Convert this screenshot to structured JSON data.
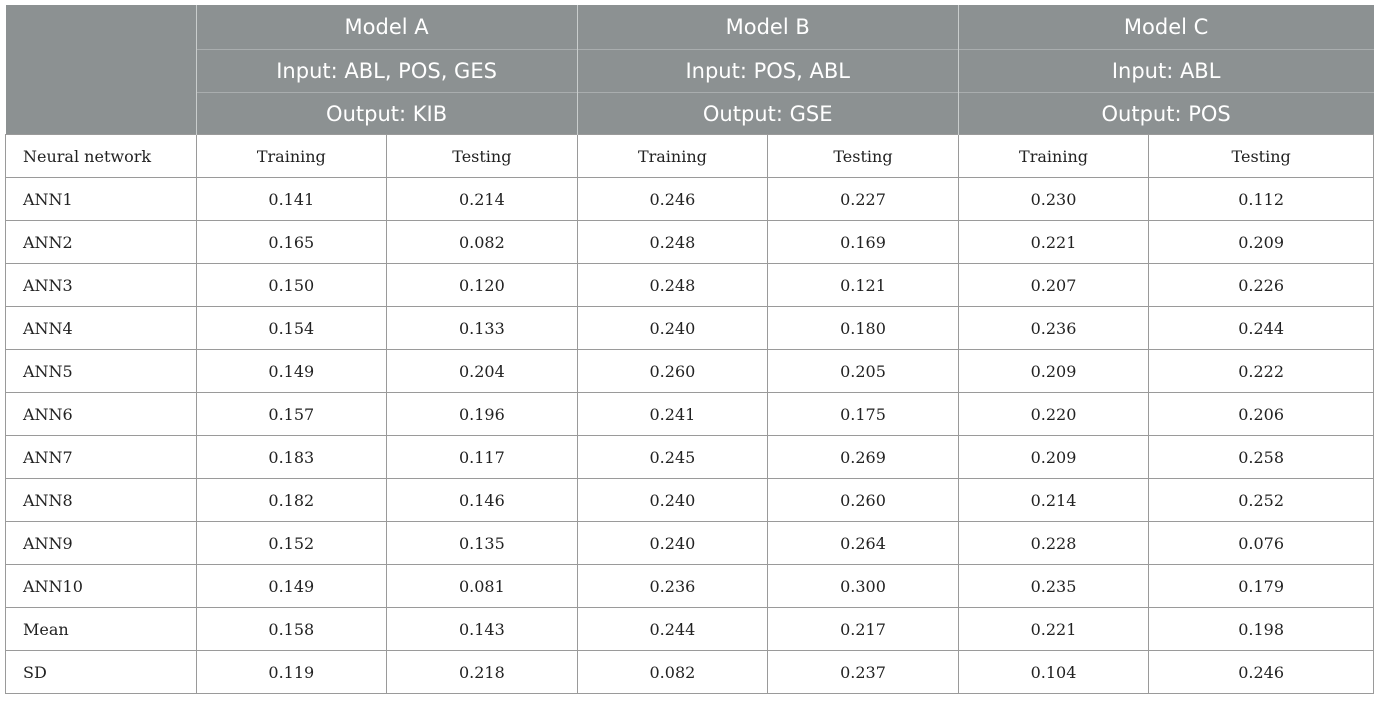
{
  "header": {
    "models": [
      {
        "name": "Model A",
        "input": "Input: ABL, POS, GES",
        "output": "Output: KIB"
      },
      {
        "name": "Model B",
        "input": "Input: POS, ABL",
        "output": "Output: GSE"
      },
      {
        "name": "Model C",
        "input": "Input: ABL",
        "output": "Output: POS"
      }
    ]
  },
  "subheader": {
    "label": "Neural network",
    "cols": [
      "Training",
      "Testing",
      "Training",
      "Testing",
      "Training",
      "Testing"
    ]
  },
  "rows": [
    {
      "name": "ANN1",
      "vals": [
        "0.141",
        "0.214",
        "0.246",
        "0.227",
        "0.230",
        "0.112"
      ]
    },
    {
      "name": "ANN2",
      "vals": [
        "0.165",
        "0.082",
        "0.248",
        "0.169",
        "0.221",
        "0.209"
      ]
    },
    {
      "name": "ANN3",
      "vals": [
        "0.150",
        "0.120",
        "0.248",
        "0.121",
        "0.207",
        "0.226"
      ]
    },
    {
      "name": "ANN4",
      "vals": [
        "0.154",
        "0.133",
        "0.240",
        "0.180",
        "0.236",
        "0.244"
      ]
    },
    {
      "name": "ANN5",
      "vals": [
        "0.149",
        "0.204",
        "0.260",
        "0.205",
        "0.209",
        "0.222"
      ]
    },
    {
      "name": "ANN6",
      "vals": [
        "0.157",
        "0.196",
        "0.241",
        "0.175",
        "0.220",
        "0.206"
      ]
    },
    {
      "name": "ANN7",
      "vals": [
        "0.183",
        "0.117",
        "0.245",
        "0.269",
        "0.209",
        "0.258"
      ]
    },
    {
      "name": "ANN8",
      "vals": [
        "0.182",
        "0.146",
        "0.240",
        "0.260",
        "0.214",
        "0.252"
      ]
    },
    {
      "name": "ANN9",
      "vals": [
        "0.152",
        "0.135",
        "0.240",
        "0.264",
        "0.228",
        "0.076"
      ]
    },
    {
      "name": "ANN10",
      "vals": [
        "0.149",
        "0.081",
        "0.236",
        "0.300",
        "0.235",
        "0.179"
      ]
    },
    {
      "name": "Mean",
      "vals": [
        "0.158",
        "0.143",
        "0.244",
        "0.217",
        "0.221",
        "0.198"
      ]
    },
    {
      "name": "SD",
      "vals": [
        "0.119",
        "0.218",
        "0.082",
        "0.237",
        "0.104",
        "0.246"
      ]
    }
  ]
}
